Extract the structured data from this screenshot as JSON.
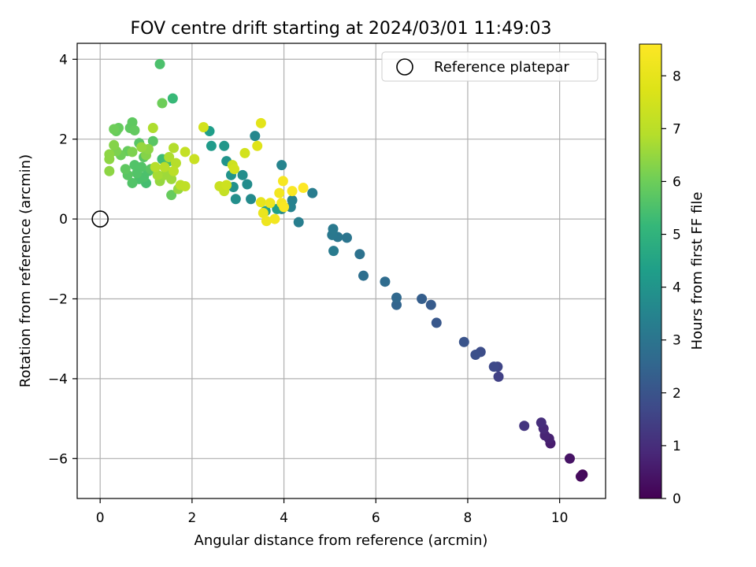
{
  "chart_data": {
    "type": "scatter",
    "title": "FOV centre drift starting at 2024/03/01 11:49:03",
    "xlabel": "Angular distance from reference (arcmin)",
    "ylabel": "Rotation from reference (arcmin)",
    "xlim": [
      -0.5,
      11
    ],
    "ylim": [
      -7,
      4.4
    ],
    "xticks": [
      0,
      2,
      4,
      6,
      8,
      10
    ],
    "yticks": [
      -6,
      -4,
      -2,
      0,
      2,
      4
    ],
    "grid": true,
    "legend": {
      "position": "top-right",
      "entries": [
        "Reference platepar"
      ]
    },
    "reference_point": {
      "x": 0,
      "y": 0
    },
    "colorbar": {
      "label": "Hours from first FF file",
      "range": [
        0,
        8.6
      ],
      "ticks": [
        0,
        1,
        2,
        3,
        4,
        5,
        6,
        7,
        8
      ],
      "colormap": "viridis"
    },
    "series": [
      {
        "points": [
          {
            "x": 10.5,
            "y": -6.4,
            "c": 0.1
          },
          {
            "x": 10.46,
            "y": -6.45,
            "c": 0.2
          },
          {
            "x": 10.22,
            "y": -6.0,
            "c": 0.4
          },
          {
            "x": 9.8,
            "y": -5.62,
            "c": 0.6
          },
          {
            "x": 9.77,
            "y": -5.5,
            "c": 0.7
          },
          {
            "x": 9.68,
            "y": -5.42,
            "c": 0.8
          },
          {
            "x": 9.65,
            "y": -5.25,
            "c": 0.9
          },
          {
            "x": 9.6,
            "y": -5.1,
            "c": 1.0
          },
          {
            "x": 9.23,
            "y": -5.18,
            "c": 1.2
          },
          {
            "x": 8.67,
            "y": -3.95,
            "c": 1.5
          },
          {
            "x": 8.65,
            "y": -3.7,
            "c": 1.6
          },
          {
            "x": 8.57,
            "y": -3.7,
            "c": 1.7
          },
          {
            "x": 8.28,
            "y": -3.33,
            "c": 1.8
          },
          {
            "x": 8.17,
            "y": -3.4,
            "c": 1.9
          },
          {
            "x": 7.92,
            "y": -3.08,
            "c": 2.0
          },
          {
            "x": 7.32,
            "y": -2.6,
            "c": 2.1
          },
          {
            "x": 7.2,
            "y": -2.15,
            "c": 2.2
          },
          {
            "x": 7.0,
            "y": -2.0,
            "c": 2.3
          },
          {
            "x": 6.45,
            "y": -2.15,
            "c": 2.5
          },
          {
            "x": 6.45,
            "y": -1.97,
            "c": 2.6
          },
          {
            "x": 6.2,
            "y": -1.57,
            "c": 2.7
          },
          {
            "x": 5.73,
            "y": -1.42,
            "c": 2.8
          },
          {
            "x": 5.65,
            "y": -0.88,
            "c": 2.9
          },
          {
            "x": 5.37,
            "y": -0.47,
            "c": 3.0
          },
          {
            "x": 5.17,
            "y": -0.45,
            "c": 3.05
          },
          {
            "x": 5.05,
            "y": -0.4,
            "c": 3.1
          },
          {
            "x": 5.07,
            "y": -0.25,
            "c": 3.15
          },
          {
            "x": 5.08,
            "y": -0.8,
            "c": 3.2
          },
          {
            "x": 4.62,
            "y": 0.65,
            "c": 3.25
          },
          {
            "x": 4.32,
            "y": -0.08,
            "c": 3.3
          },
          {
            "x": 4.18,
            "y": 0.47,
            "c": 3.4
          },
          {
            "x": 4.15,
            "y": 0.3,
            "c": 3.45
          },
          {
            "x": 3.95,
            "y": 1.35,
            "c": 3.5
          },
          {
            "x": 3.95,
            "y": 0.25,
            "c": 3.55
          },
          {
            "x": 3.37,
            "y": 2.08,
            "c": 3.6
          },
          {
            "x": 3.28,
            "y": 0.5,
            "c": 3.7
          },
          {
            "x": 3.2,
            "y": 0.87,
            "c": 3.75
          },
          {
            "x": 3.1,
            "y": 1.1,
            "c": 3.8
          },
          {
            "x": 2.95,
            "y": 0.5,
            "c": 3.85
          },
          {
            "x": 2.9,
            "y": 0.8,
            "c": 3.9
          },
          {
            "x": 2.85,
            "y": 1.1,
            "c": 3.95
          },
          {
            "x": 2.75,
            "y": 1.45,
            "c": 4.0
          },
          {
            "x": 2.7,
            "y": 1.83,
            "c": 4.1
          },
          {
            "x": 2.42,
            "y": 1.83,
            "c": 4.2
          },
          {
            "x": 2.38,
            "y": 2.2,
            "c": 4.3
          },
          {
            "x": 3.85,
            "y": 0.25,
            "c": 4.35
          },
          {
            "x": 3.6,
            "y": 0.2,
            "c": 4.4
          },
          {
            "x": 1.58,
            "y": 3.02,
            "c": 5.2
          },
          {
            "x": 1.35,
            "y": 1.5,
            "c": 5.3
          },
          {
            "x": 1.3,
            "y": 3.88,
            "c": 5.5
          },
          {
            "x": 1.5,
            "y": 1.45,
            "c": 5.4
          },
          {
            "x": 1.0,
            "y": 0.9,
            "c": 5.4
          },
          {
            "x": 0.95,
            "y": 1.05,
            "c": 5.5
          },
          {
            "x": 0.85,
            "y": 1.0,
            "c": 5.5
          },
          {
            "x": 1.05,
            "y": 1.2,
            "c": 5.5
          },
          {
            "x": 0.9,
            "y": 1.3,
            "c": 5.6
          },
          {
            "x": 0.8,
            "y": 1.15,
            "c": 5.6
          },
          {
            "x": 0.75,
            "y": 1.35,
            "c": 5.6
          },
          {
            "x": 0.7,
            "y": 0.9,
            "c": 5.6
          },
          {
            "x": 0.95,
            "y": 1.55,
            "c": 5.7
          },
          {
            "x": 1.1,
            "y": 1.25,
            "c": 5.7
          },
          {
            "x": 0.85,
            "y": 1.9,
            "c": 5.7
          },
          {
            "x": 1.15,
            "y": 1.95,
            "c": 5.7
          },
          {
            "x": 0.6,
            "y": 1.1,
            "c": 5.7
          },
          {
            "x": 0.55,
            "y": 1.25,
            "c": 5.8
          },
          {
            "x": 0.65,
            "y": 2.28,
            "c": 5.8
          },
          {
            "x": 0.7,
            "y": 2.42,
            "c": 5.8
          },
          {
            "x": 0.75,
            "y": 2.22,
            "c": 5.85
          },
          {
            "x": 0.4,
            "y": 2.28,
            "c": 5.9
          },
          {
            "x": 0.35,
            "y": 2.2,
            "c": 5.9
          },
          {
            "x": 0.3,
            "y": 2.25,
            "c": 6.0
          },
          {
            "x": 0.6,
            "y": 1.7,
            "c": 5.9
          },
          {
            "x": 0.45,
            "y": 1.6,
            "c": 6.0
          },
          {
            "x": 1.55,
            "y": 0.6,
            "c": 5.9
          },
          {
            "x": 1.35,
            "y": 2.9,
            "c": 6.0
          },
          {
            "x": 0.7,
            "y": 1.68,
            "c": 6.2
          },
          {
            "x": 0.35,
            "y": 1.7,
            "c": 6.2
          },
          {
            "x": 0.3,
            "y": 1.85,
            "c": 6.3
          },
          {
            "x": 0.2,
            "y": 1.62,
            "c": 6.4
          },
          {
            "x": 0.2,
            "y": 1.5,
            "c": 6.4
          },
          {
            "x": 0.2,
            "y": 1.2,
            "c": 6.4
          },
          {
            "x": 1.0,
            "y": 1.6,
            "c": 6.3
          },
          {
            "x": 1.05,
            "y": 1.75,
            "c": 6.4
          },
          {
            "x": 0.9,
            "y": 1.8,
            "c": 6.5
          },
          {
            "x": 1.7,
            "y": 0.75,
            "c": 6.5
          },
          {
            "x": 1.3,
            "y": 0.95,
            "c": 6.5
          },
          {
            "x": 1.4,
            "y": 1.1,
            "c": 6.6
          },
          {
            "x": 1.55,
            "y": 1.0,
            "c": 6.6
          },
          {
            "x": 1.25,
            "y": 1.1,
            "c": 6.7
          },
          {
            "x": 1.45,
            "y": 1.2,
            "c": 6.6
          },
          {
            "x": 1.15,
            "y": 2.28,
            "c": 6.8
          },
          {
            "x": 1.5,
            "y": 1.55,
            "c": 6.8
          },
          {
            "x": 1.6,
            "y": 1.78,
            "c": 6.85
          },
          {
            "x": 1.65,
            "y": 1.4,
            "c": 6.9
          },
          {
            "x": 1.2,
            "y": 1.3,
            "c": 6.9
          },
          {
            "x": 1.4,
            "y": 1.3,
            "c": 6.95
          },
          {
            "x": 1.6,
            "y": 1.2,
            "c": 7.0
          },
          {
            "x": 1.75,
            "y": 0.85,
            "c": 7.0
          },
          {
            "x": 1.85,
            "y": 0.82,
            "c": 7.1
          },
          {
            "x": 1.85,
            "y": 1.68,
            "c": 7.2
          },
          {
            "x": 2.05,
            "y": 1.5,
            "c": 7.3
          },
          {
            "x": 2.7,
            "y": 0.7,
            "c": 7.2
          },
          {
            "x": 2.6,
            "y": 0.82,
            "c": 7.3
          },
          {
            "x": 2.75,
            "y": 0.85,
            "c": 7.4
          },
          {
            "x": 2.88,
            "y": 1.35,
            "c": 7.4
          },
          {
            "x": 2.92,
            "y": 1.25,
            "c": 7.5
          },
          {
            "x": 3.15,
            "y": 1.65,
            "c": 7.5
          },
          {
            "x": 2.25,
            "y": 2.3,
            "c": 7.5
          },
          {
            "x": 3.42,
            "y": 1.83,
            "c": 7.8
          },
          {
            "x": 3.5,
            "y": 2.4,
            "c": 7.9
          },
          {
            "x": 3.5,
            "y": 0.42,
            "c": 8.0
          },
          {
            "x": 3.55,
            "y": 0.15,
            "c": 8.1
          },
          {
            "x": 3.62,
            "y": -0.05,
            "c": 8.2
          },
          {
            "x": 3.7,
            "y": 0.4,
            "c": 8.2
          },
          {
            "x": 3.8,
            "y": 0.0,
            "c": 8.3
          },
          {
            "x": 3.9,
            "y": 0.65,
            "c": 8.3
          },
          {
            "x": 3.98,
            "y": 0.95,
            "c": 8.4
          },
          {
            "x": 3.95,
            "y": 0.4,
            "c": 8.4
          },
          {
            "x": 4.0,
            "y": 0.3,
            "c": 8.5
          },
          {
            "x": 4.18,
            "y": 0.7,
            "c": 8.5
          },
          {
            "x": 4.42,
            "y": 0.78,
            "c": 8.6
          }
        ]
      }
    ]
  }
}
